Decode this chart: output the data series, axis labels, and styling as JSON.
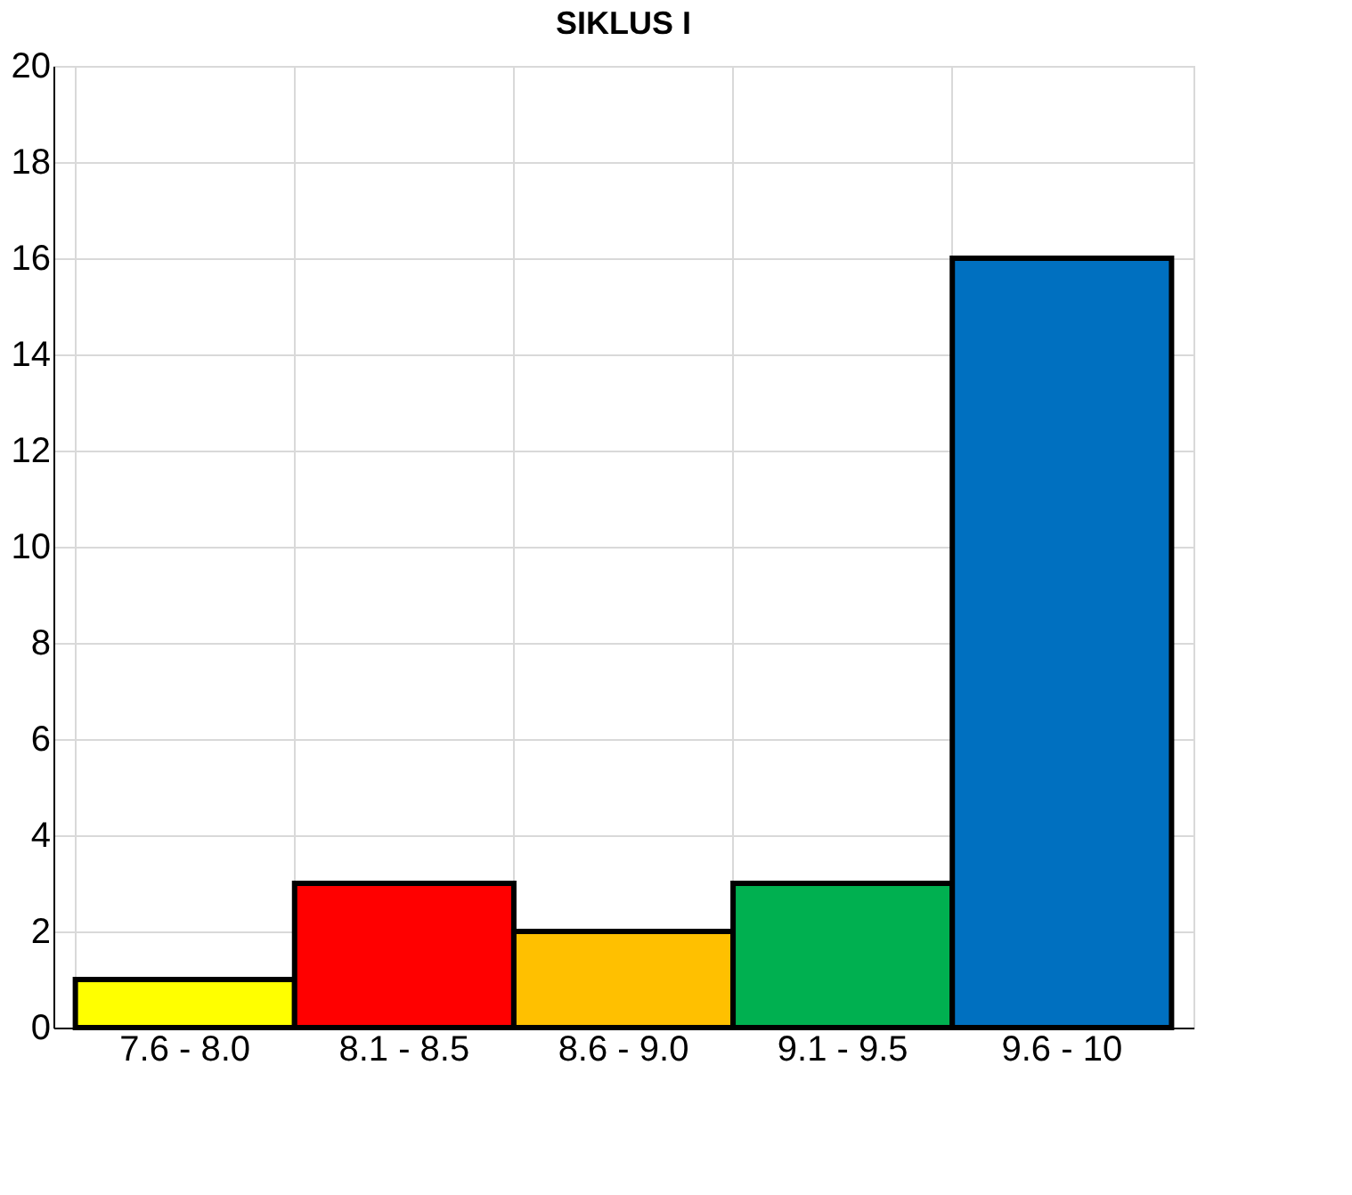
{
  "chart_data": {
    "type": "bar",
    "title": "SIKLUS I",
    "categories": [
      "7.6 - 8.0",
      "8.1 - 8.5",
      "8.6 - 9.0",
      "9.1 - 9.5",
      "9.6 - 10"
    ],
    "values": [
      1,
      3,
      2,
      3,
      16
    ],
    "colors": [
      "#ffff00",
      "#ff0000",
      "#ffc000",
      "#00b050",
      "#0070c0"
    ],
    "ylim": [
      0,
      20
    ],
    "yticks": [
      0,
      2,
      4,
      6,
      8,
      10,
      12,
      14,
      16,
      18,
      20
    ],
    "grid": true
  }
}
